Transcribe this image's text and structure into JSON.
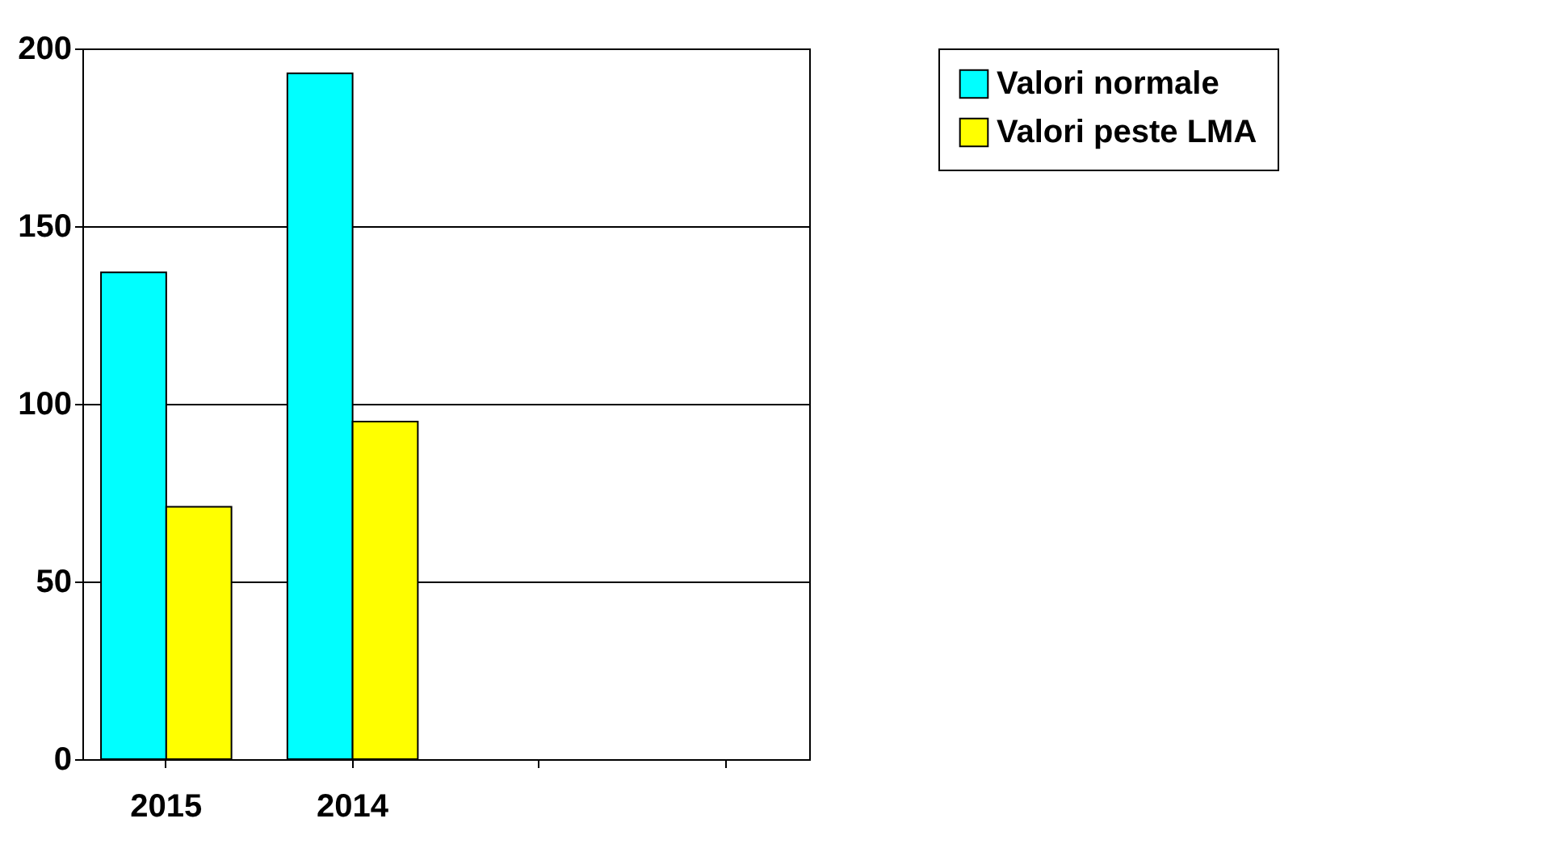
{
  "chart_data": {
    "type": "bar",
    "categories": [
      "2015",
      "2014",
      null,
      null
    ],
    "series": [
      {
        "name": "Valori normale",
        "color": "#00ffff",
        "values": [
          137,
          193,
          null,
          null
        ]
      },
      {
        "name": "Valori peste LMA",
        "color": "#ffff00",
        "values": [
          71,
          95,
          null,
          null
        ]
      }
    ],
    "ylim": [
      0,
      200
    ],
    "yticks": [
      0,
      50,
      100,
      150,
      200
    ],
    "grid": "y",
    "legend": "right"
  }
}
